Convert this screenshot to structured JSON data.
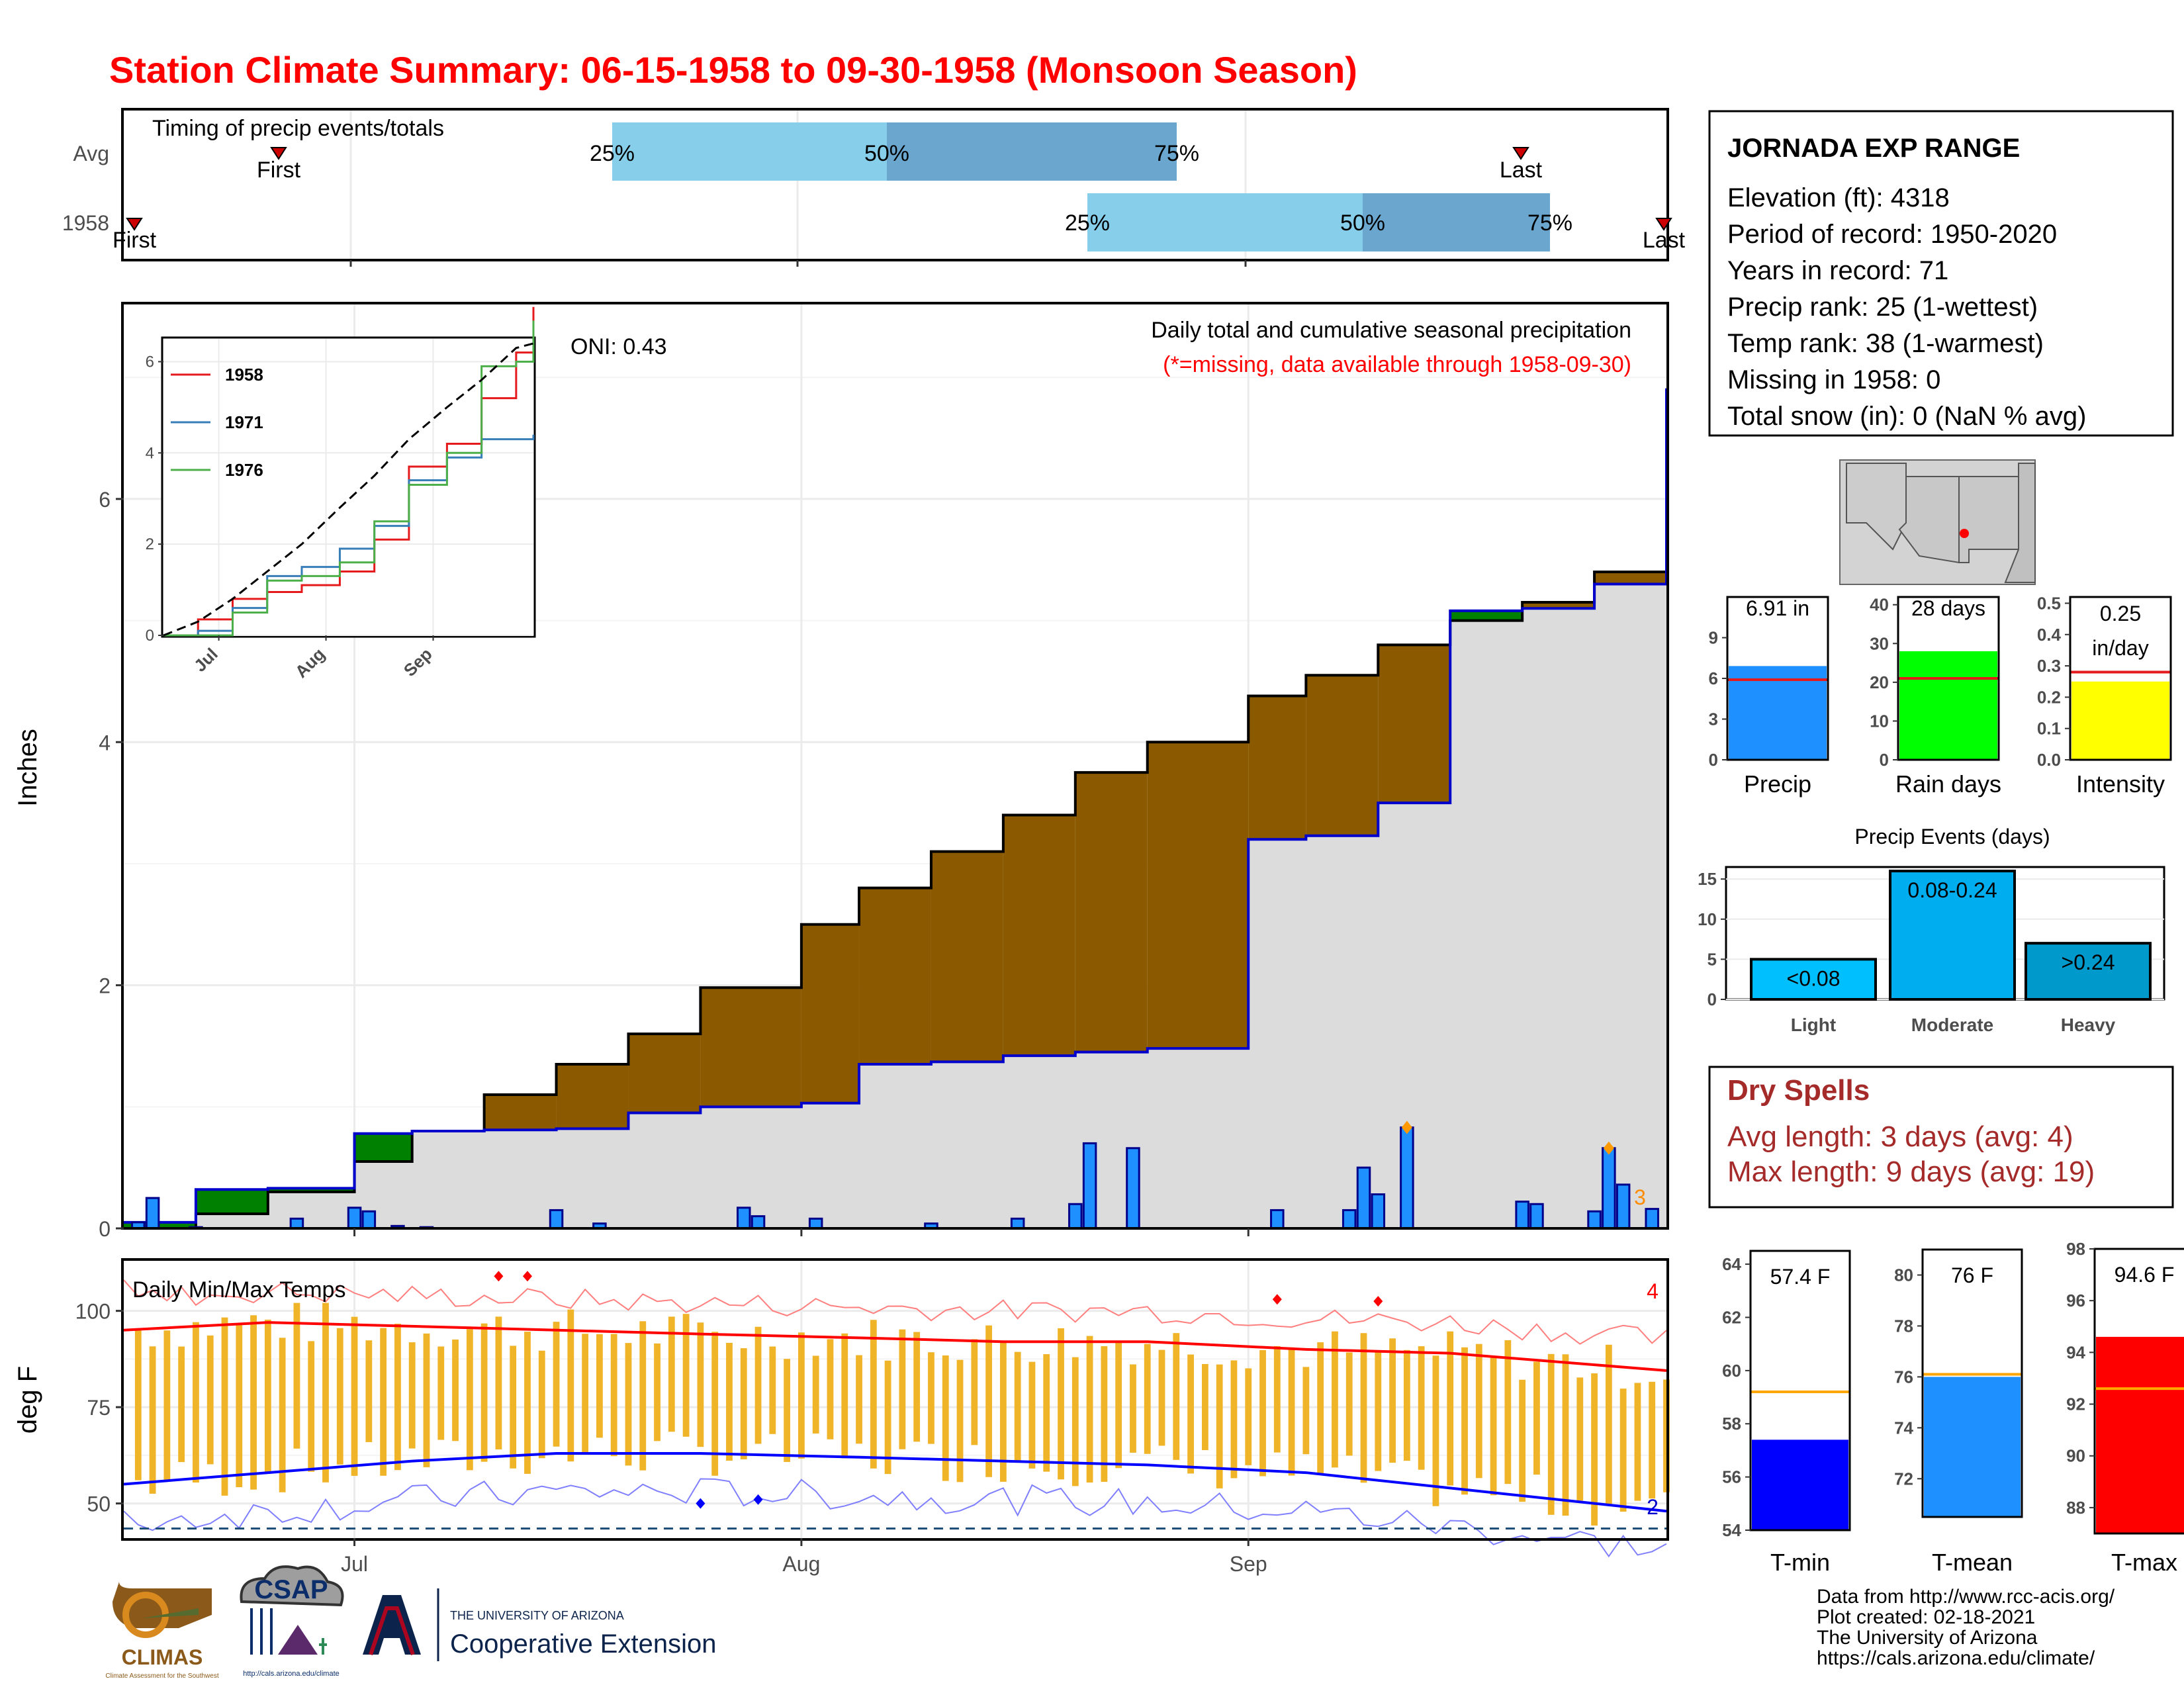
{
  "title": "Station Climate Summary: 06-15-1958 to 09-30-1958 (Monsoon Season)",
  "timing": {
    "title": "Timing of precip events/totals",
    "rows": [
      {
        "label": "Avg",
        "first_label": "First",
        "last_label": "Last",
        "q_labels": [
          "25%",
          "50%",
          "75%"
        ]
      },
      {
        "label": "1958",
        "first_label": "First",
        "last_label": "Last",
        "q_labels": [
          "25%",
          "50%",
          "75%"
        ]
      }
    ]
  },
  "precip_panel": {
    "ylabel": "Inches",
    "yticks": [
      "0",
      "2",
      "4",
      "6"
    ],
    "xticks": [
      "Jul",
      "Aug",
      "Sep"
    ],
    "oni": "ONI: 0.43",
    "note1": "Daily total and cumulative seasonal precipitation",
    "note2": "(*=missing, data available through 1958-09-30)",
    "extreme_count": "3",
    "inset": {
      "yticks": [
        "0",
        "2",
        "4",
        "6"
      ],
      "xticks": [
        "Jul",
        "Aug",
        "Sep"
      ],
      "legend": [
        {
          "name": "1958",
          "color": "#e41a1c"
        },
        {
          "name": "1971",
          "color": "#377eb8"
        },
        {
          "name": "1976",
          "color": "#4daf4a"
        }
      ]
    }
  },
  "temp_panel": {
    "ylabel": "deg F",
    "title": "Daily Min/Max Temps",
    "yticks": [
      "50",
      "75",
      "100"
    ],
    "xticks": [
      "Jul",
      "Aug",
      "Sep"
    ],
    "hot_count": "4",
    "cold_count": "2"
  },
  "station": {
    "name": "JORNADA EXP RANGE",
    "lines": [
      "Elevation (ft): 4318",
      "Period of record: 1950-2020",
      "Years in record: 71",
      "Precip rank: 25 (1-wettest)",
      "Temp rank: 38 (1-warmest)",
      "Missing in 1958: 0",
      "Total snow (in): 0 (NaN % avg)"
    ]
  },
  "summary_bars": [
    {
      "label": "Precip",
      "value_text": "6.91 in",
      "value": 6.91,
      "avg": 5.9,
      "ymax": 12,
      "yticks": [
        "0",
        "3",
        "6",
        "9"
      ],
      "tickvals": [
        0,
        3,
        6,
        9
      ],
      "color": "#1e90ff"
    },
    {
      "label": "Rain days",
      "value_text": "28 days",
      "value": 28,
      "avg": 21,
      "ymax": 42,
      "yticks": [
        "0",
        "10",
        "20",
        "30",
        "40"
      ],
      "tickvals": [
        0,
        10,
        20,
        30,
        40
      ],
      "color": "#00ff00"
    },
    {
      "label": "Intensity",
      "value_text_1": "0.25",
      "value_text_2": "in/day",
      "value": 0.25,
      "avg": 0.28,
      "ymax": 0.52,
      "yticks": [
        "0.0",
        "0.1",
        "0.2",
        "0.3",
        "0.4",
        "0.5"
      ],
      "tickvals": [
        0,
        0.1,
        0.2,
        0.3,
        0.4,
        0.5
      ],
      "color": "#ffff00"
    }
  ],
  "precip_events": {
    "title": "Precip Events (days)",
    "yticks": [
      "0",
      "5",
      "10",
      "15"
    ],
    "bars": [
      {
        "category": "Light",
        "label": "<0.08",
        "value": 5,
        "color": "#00bfff"
      },
      {
        "category": "Moderate",
        "label": "0.08-0.24",
        "value": 16,
        "color": "#00aeef"
      },
      {
        "category": "Heavy",
        "label": ">0.24",
        "value": 7,
        "color": "#0099cc"
      }
    ]
  },
  "dry_spells": {
    "title": "Dry Spells",
    "avg_length": "Avg length: 3 days (avg: 4)",
    "max_length": "Max length: 9 days (avg: 19)"
  },
  "temp_bars": [
    {
      "label": "T-min",
      "value_text": "57.4 F",
      "value": 57.4,
      "avg": 59.2,
      "ymin": 54,
      "ymax": 64.5,
      "yticks": [
        "54",
        "56",
        "58",
        "60",
        "62",
        "64"
      ],
      "tickvals": [
        54,
        56,
        58,
        60,
        62,
        64
      ],
      "color": "#0000ff"
    },
    {
      "label": "T-mean",
      "value_text": "76 F",
      "value": 76,
      "avg": 76.1,
      "ymin": 70.5,
      "ymax": 81,
      "yticks": [
        "72",
        "74",
        "76",
        "78",
        "80"
      ],
      "tickvals": [
        72,
        74,
        76,
        78,
        80
      ],
      "color": "#1e90ff"
    },
    {
      "label": "T-max",
      "value_text": "94.6 F",
      "value": 94.6,
      "avg": 92.6,
      "ymin": 87,
      "ymax": 98,
      "yticks": [
        "88",
        "90",
        "92",
        "94",
        "96",
        "98"
      ],
      "tickvals": [
        88,
        90,
        92,
        94,
        96,
        98
      ],
      "color": "#ff0000"
    }
  ],
  "footer": {
    "lines": [
      "Data from http://www.rcc-acis.org/",
      "Plot created: 02-18-2021",
      "The University of Arizona",
      "https://cals.arizona.edu/climate/"
    ],
    "logos": {
      "climas": "CLIMAS",
      "climas_sub": "Climate Assessment for the Southwest",
      "csap": "CSAP",
      "csap_url": "http://cals.arizona.edu/climate",
      "ua_small": "THE UNIVERSITY OF ARIZONA",
      "ua_big": "Cooperative Extension"
    }
  },
  "chart_data": [
    {
      "type": "area",
      "x_unit": "date",
      "x": [
        "06-15",
        "06-20",
        "06-25",
        "07-01",
        "07-05",
        "07-10",
        "07-15",
        "07-20",
        "07-25",
        "08-01",
        "08-05",
        "08-10",
        "08-15",
        "08-20",
        "08-25",
        "09-01",
        "09-05",
        "09-10",
        "09-15",
        "09-20",
        "09-25",
        "09-30"
      ],
      "series": [
        {
          "name": "1958",
          "values": [
            0.05,
            0.32,
            0.33,
            0.78,
            0.8,
            0.81,
            0.82,
            0.95,
            1.0,
            1.03,
            1.35,
            1.37,
            1.42,
            1.45,
            1.48,
            3.2,
            3.23,
            3.5,
            5.08,
            5.1,
            5.3,
            6.91
          ]
        },
        {
          "name": "Avg",
          "values": [
            0.0,
            0.12,
            0.3,
            0.55,
            0.8,
            1.1,
            1.35,
            1.6,
            1.98,
            2.5,
            2.8,
            3.1,
            3.4,
            3.75,
            4.0,
            4.38,
            4.55,
            4.8,
            5.0,
            5.15,
            5.4,
            5.57
          ]
        }
      ],
      "daily_precip": [
        {
          "date": "06-16",
          "value": 0.05
        },
        {
          "date": "06-17",
          "value": 0.25
        },
        {
          "date": "06-20",
          "value": 0.01
        },
        {
          "date": "06-27",
          "value": 0.08
        },
        {
          "date": "07-01",
          "value": 0.17
        },
        {
          "date": "07-02",
          "value": 0.14
        },
        {
          "date": "07-04",
          "value": 0.02
        },
        {
          "date": "07-06",
          "value": 0.01
        },
        {
          "date": "07-15",
          "value": 0.15
        },
        {
          "date": "07-18",
          "value": 0.04
        },
        {
          "date": "07-28",
          "value": 0.17
        },
        {
          "date": "07-29",
          "value": 0.1
        },
        {
          "date": "08-02",
          "value": 0.08
        },
        {
          "date": "08-10",
          "value": 0.04
        },
        {
          "date": "08-16",
          "value": 0.08
        },
        {
          "date": "08-20",
          "value": 0.2
        },
        {
          "date": "08-21",
          "value": 0.7
        },
        {
          "date": "08-24",
          "value": 0.66
        },
        {
          "date": "09-03",
          "value": 0.15
        },
        {
          "date": "09-08",
          "value": 0.15
        },
        {
          "date": "09-09",
          "value": 0.5
        },
        {
          "date": "09-10",
          "value": 0.28
        },
        {
          "date": "09-12",
          "value": 0.83
        },
        {
          "date": "09-20",
          "value": 0.22
        },
        {
          "date": "09-21",
          "value": 0.2
        },
        {
          "date": "09-25",
          "value": 0.14
        },
        {
          "date": "09-26",
          "value": 0.66
        },
        {
          "date": "09-27",
          "value": 0.36
        },
        {
          "date": "09-29",
          "value": 0.16
        }
      ],
      "ylabel": "Inches",
      "ylim": [
        0,
        7.6
      ]
    },
    {
      "type": "line",
      "x_unit": "date",
      "x": [
        "06-15",
        "06-25",
        "07-05",
        "07-15",
        "07-25",
        "08-05",
        "08-15",
        "08-25",
        "09-05",
        "09-15",
        "09-25",
        "09-30"
      ],
      "series": [
        {
          "name": "1958",
          "values": [
            0.0,
            0.35,
            0.8,
            0.95,
            1.1,
            1.4,
            2.1,
            3.7,
            4.2,
            5.2,
            6.2,
            7.2
          ]
        },
        {
          "name": "1971",
          "values": [
            0.0,
            0.1,
            0.6,
            1.3,
            1.5,
            1.9,
            2.4,
            3.4,
            3.9,
            4.3,
            4.3,
            4.4
          ]
        },
        {
          "name": "1976",
          "values": [
            0.0,
            0.0,
            0.5,
            1.2,
            1.3,
            1.6,
            2.5,
            3.3,
            4.0,
            5.9,
            6.0,
            6.9
          ]
        },
        {
          "name": "Avg",
          "values": [
            0.0,
            0.3,
            0.8,
            1.4,
            2.0,
            2.8,
            3.5,
            4.3,
            5.0,
            5.6,
            6.3,
            6.4
          ]
        }
      ],
      "ylim": [
        0,
        6.5
      ]
    },
    {
      "type": "bar",
      "x_unit": "date",
      "x_start": "06-15",
      "x_end": "09-30",
      "ylabel": "deg F",
      "ylim": [
        41,
        113
      ],
      "tmax_avg": [
        95,
        97,
        96,
        95,
        94,
        93,
        92,
        92,
        90,
        89,
        86,
        84.5
      ],
      "tmin_avg": [
        55,
        58,
        61,
        63,
        63,
        62,
        61,
        60,
        58,
        54,
        50,
        48
      ],
      "x_avg": [
        "06-15",
        "06-25",
        "07-05",
        "07-15",
        "07-25",
        "08-05",
        "08-15",
        "08-25",
        "09-05",
        "09-15",
        "09-25",
        "09-30"
      ]
    },
    {
      "type": "bar",
      "categories": [
        "Light",
        "Moderate",
        "Heavy"
      ],
      "values": [
        5,
        16,
        7
      ],
      "title": "Precip Events (days)"
    }
  ]
}
